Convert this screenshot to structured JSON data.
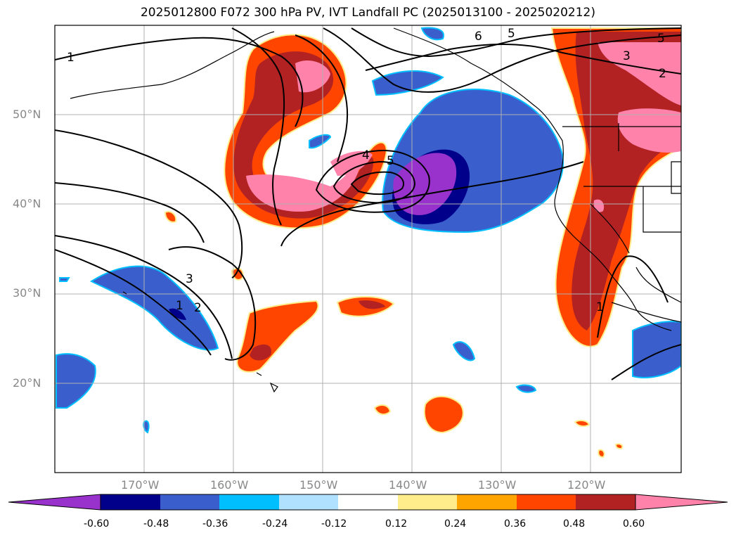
{
  "title": "2025012800 F072 300 hPa PV, IVT Landfall PC (2025013100 - 2025020212)",
  "axes": {
    "lat_labels": [
      "50°N",
      "40°N",
      "30°N",
      "20°N"
    ],
    "lon_labels": [
      "170°W",
      "160°W",
      "150°W",
      "140°W",
      "130°W",
      "120°W"
    ]
  },
  "contour_labels": [
    "1",
    "6",
    "5",
    "5",
    "3",
    "2",
    "4",
    "5",
    "3",
    "1",
    "2",
    "1"
  ],
  "colorbar": {
    "ticks": [
      "-0.60",
      "-0.48",
      "-0.36",
      "-0.24",
      "-0.12",
      "0.12",
      "0.24",
      "0.36",
      "0.48",
      "0.60"
    ],
    "colors": [
      "#9932cc",
      "#00008b",
      "#3a5fcd",
      "#00bfff",
      "#b0e2ff",
      "#ffffff",
      "#ffec8b",
      "#ffa500",
      "#ff4500",
      "#b22222",
      "#ff82ab"
    ]
  },
  "colors": {
    "neg_strong": "#9932cc",
    "neg_dark": "#00008b",
    "neg_mid": "#3a5fcd",
    "neg_light": "#00bfff",
    "pos_light": "#ffec8b",
    "pos_orange": "#ff4500",
    "pos_red": "#b22222",
    "pos_pink": "#ff82ab"
  }
}
